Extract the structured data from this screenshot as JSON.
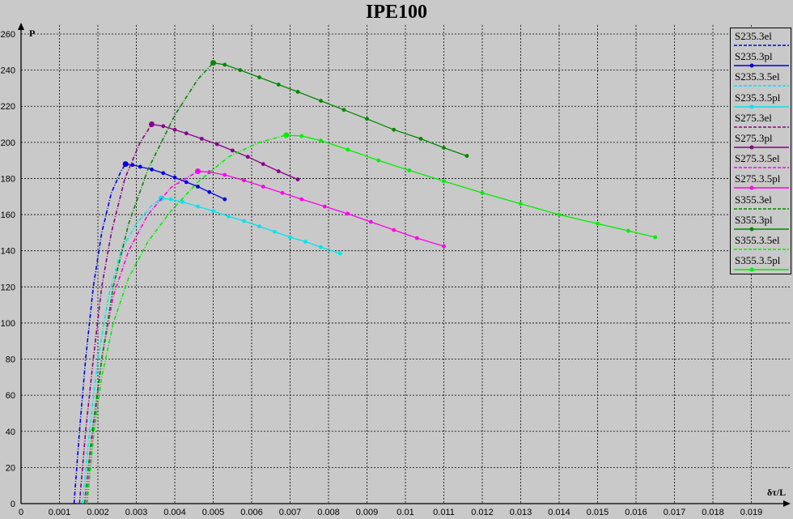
{
  "chart_data": {
    "type": "line",
    "title": "IPE100",
    "xlabel": "δτ/L",
    "ylabel": "P",
    "xlim": [
      0,
      0.02
    ],
    "ylim": [
      0,
      260
    ],
    "x_ticks": [
      0,
      0.001,
      0.002,
      0.003,
      0.004,
      0.005,
      0.006,
      0.007,
      0.008,
      0.009,
      0.01,
      0.011,
      0.012,
      0.013,
      0.014,
      0.015,
      0.016,
      0.017,
      0.018,
      0.019
    ],
    "x_tick_labels": [
      "0",
      "0.001",
      "0.002",
      "0.003",
      "0.004",
      "0.005",
      "0.006",
      "0.007",
      "0.008",
      "0.009",
      "0.01",
      "0.011",
      "0.012",
      "0.013",
      "0.014",
      "0.015",
      "0.016",
      "0.017",
      "0.018",
      "0.019"
    ],
    "y_ticks": [
      0,
      20,
      40,
      60,
      80,
      100,
      120,
      140,
      160,
      180,
      200,
      220,
      240,
      260
    ],
    "y_tick_labels": [
      "0",
      "20",
      "40",
      "60",
      "80",
      "100",
      "120",
      "140",
      "160",
      "180",
      "200",
      "220",
      "240",
      "260"
    ],
    "grid": true,
    "legend_position": "right",
    "series": [
      {
        "name": "S235.3el",
        "color": "#0000dd",
        "style": "dashed",
        "markers": false,
        "x": [
          0.00138,
          0.00152,
          0.00168,
          0.00188,
          0.0021,
          0.00235,
          0.0026,
          0.00272
        ],
        "y": [
          0,
          40,
          80,
          120,
          150,
          172,
          184,
          188
        ]
      },
      {
        "name": "S235.3pl",
        "color": "#0000dd",
        "style": "solid",
        "markers": true,
        "x": [
          0.00272,
          0.0029,
          0.0031,
          0.0034,
          0.0037,
          0.004,
          0.0043,
          0.0046,
          0.0049,
          0.0053
        ],
        "y": [
          188,
          187.5,
          186.5,
          185,
          183,
          180.5,
          178,
          175.5,
          172.5,
          168.5
        ]
      },
      {
        "name": "S235.3.5el",
        "color": "#00e5ee",
        "style": "dashed",
        "markers": false,
        "x": [
          0.0016,
          0.00178,
          0.002,
          0.00228,
          0.0026,
          0.003,
          0.0034,
          0.00365
        ],
        "y": [
          0,
          40,
          80,
          115,
          140,
          155,
          165,
          169
        ]
      },
      {
        "name": "S235.3.5pl",
        "color": "#00e5ee",
        "style": "solid",
        "markers": true,
        "x": [
          0.00365,
          0.0039,
          0.0042,
          0.0046,
          0.005,
          0.0054,
          0.0058,
          0.0062,
          0.0066,
          0.007,
          0.0074,
          0.0078,
          0.0083
        ],
        "y": [
          169,
          168.5,
          167,
          164.5,
          162,
          159,
          156.5,
          153.5,
          150.5,
          147.5,
          145,
          142,
          138.5
        ]
      },
      {
        "name": "S275.3el",
        "color": "#880088",
        "style": "dashed",
        "markers": false,
        "x": [
          0.00152,
          0.00168,
          0.00188,
          0.0021,
          0.00235,
          0.0027,
          0.0031,
          0.0034
        ],
        "y": [
          0,
          40,
          80,
          120,
          150,
          180,
          200,
          210
        ]
      },
      {
        "name": "S275.3pl",
        "color": "#880088",
        "style": "solid",
        "markers": true,
        "x": [
          0.0034,
          0.0037,
          0.004,
          0.0043,
          0.0047,
          0.0051,
          0.0055,
          0.0059,
          0.0063,
          0.0067,
          0.0072
        ],
        "y": [
          210,
          209,
          207,
          205,
          202,
          199,
          195.5,
          192,
          188,
          184,
          179.5
        ]
      },
      {
        "name": "S275.3.5el",
        "color": "#ff00ee",
        "style": "dashed",
        "markers": false,
        "x": [
          0.0017,
          0.00188,
          0.0021,
          0.0024,
          0.0028,
          0.0033,
          0.0039,
          0.0046
        ],
        "y": [
          0,
          40,
          80,
          115,
          140,
          160,
          175,
          184
        ]
      },
      {
        "name": "S275.3.5pl",
        "color": "#ff00ee",
        "style": "solid",
        "markers": true,
        "x": [
          0.0046,
          0.0049,
          0.0053,
          0.0058,
          0.0063,
          0.0068,
          0.0073,
          0.0079,
          0.0085,
          0.0091,
          0.0097,
          0.0103,
          0.011
        ],
        "y": [
          184,
          183.5,
          182,
          179,
          175.5,
          172,
          168.5,
          164.5,
          160.5,
          156,
          151.5,
          147,
          142.5
        ]
      },
      {
        "name": "S355.3el",
        "color": "#008800",
        "style": "dashed",
        "markers": false,
        "x": [
          0.00165,
          0.00185,
          0.0021,
          0.0024,
          0.0028,
          0.0033,
          0.004,
          0.0046,
          0.005
        ],
        "y": [
          0,
          40,
          80,
          120,
          155,
          185,
          215,
          235,
          244
        ]
      },
      {
        "name": "S355.3pl",
        "color": "#008800",
        "style": "solid",
        "markers": true,
        "x": [
          0.005,
          0.0053,
          0.0057,
          0.0062,
          0.0067,
          0.0072,
          0.0078,
          0.0084,
          0.009,
          0.0097,
          0.0104,
          0.011,
          0.0116
        ],
        "y": [
          244,
          243,
          240,
          236,
          232,
          228,
          223,
          218,
          213,
          207,
          202,
          197,
          192.5
        ]
      },
      {
        "name": "S355.3.5el",
        "color": "#00ee00",
        "style": "dashed",
        "markers": false,
        "x": [
          0.00172,
          0.0019,
          0.0021,
          0.0024,
          0.0028,
          0.0033,
          0.0039,
          0.0046,
          0.0054,
          0.0062,
          0.0069
        ],
        "y": [
          0,
          40,
          70,
          100,
          125,
          145,
          162,
          178,
          192,
          200,
          204
        ]
      },
      {
        "name": "S355.3.5pl",
        "color": "#00ee00",
        "style": "solid",
        "markers": true,
        "x": [
          0.0069,
          0.0073,
          0.0078,
          0.0085,
          0.0093,
          0.0101,
          0.011,
          0.012,
          0.013,
          0.014,
          0.015,
          0.0158,
          0.0165
        ],
        "y": [
          204,
          203.5,
          201,
          196,
          190,
          184.5,
          178.5,
          172,
          166,
          160,
          155,
          151,
          147.5
        ]
      }
    ]
  }
}
